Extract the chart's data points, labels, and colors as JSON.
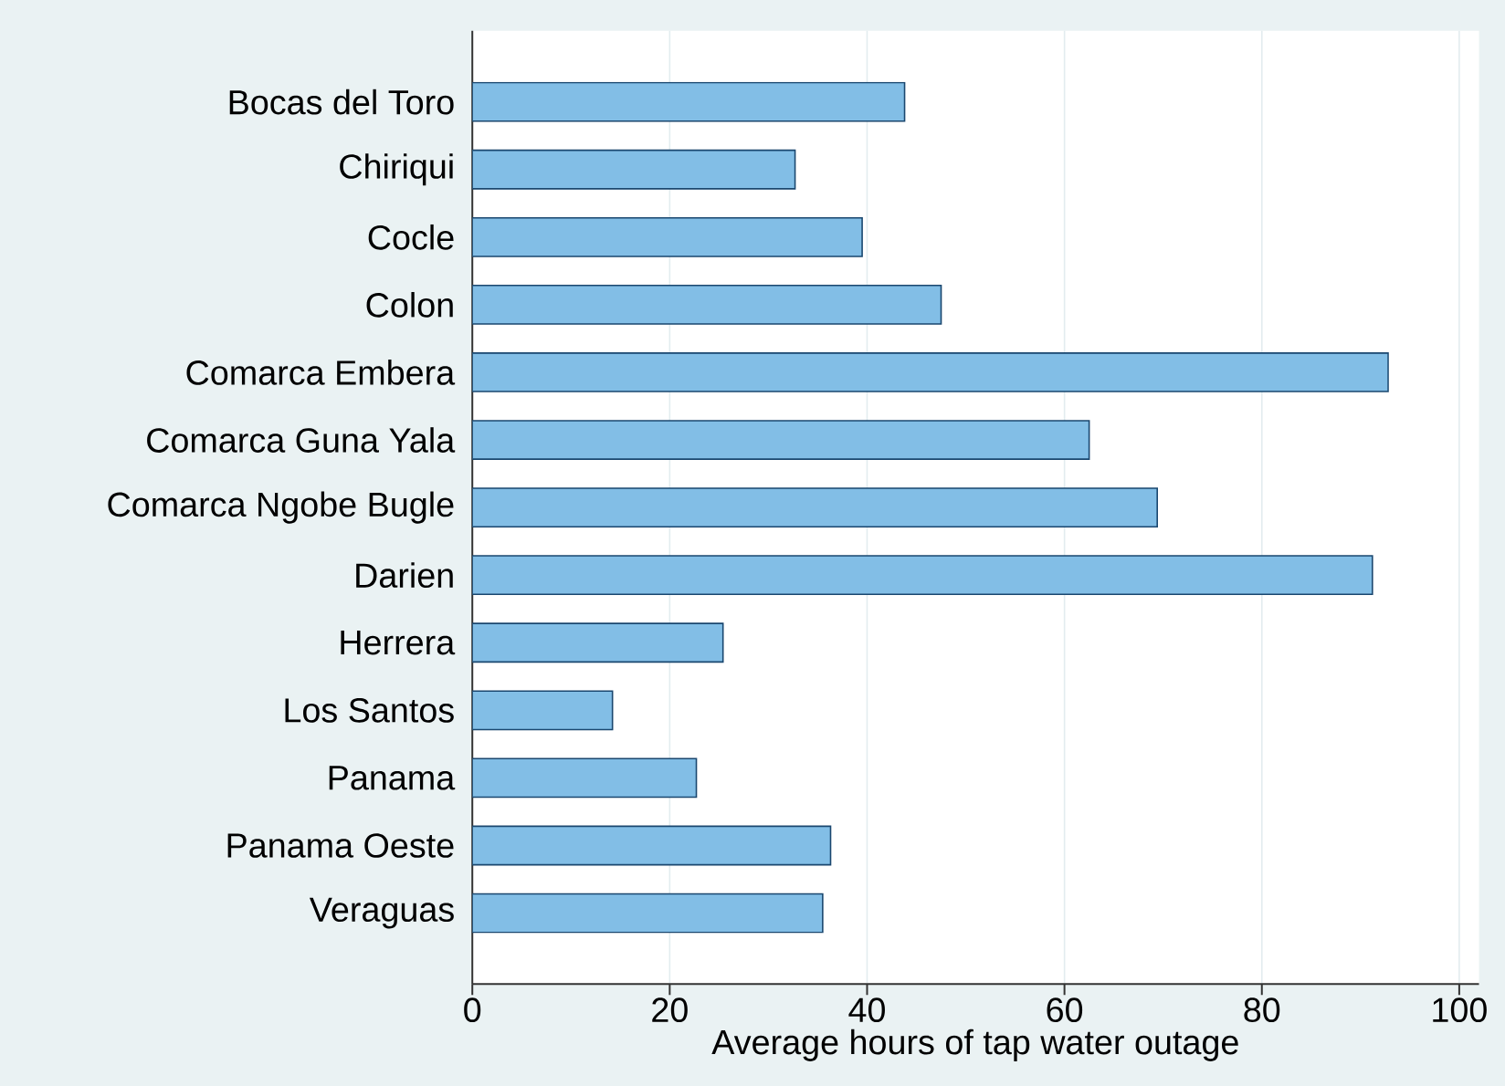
{
  "chart_data": {
    "type": "bar",
    "orientation": "horizontal",
    "categories": [
      "Bocas del Toro",
      "Chiriqui",
      "Cocle",
      "Colon",
      "Comarca Embera",
      "Comarca Guna Yala",
      "Comarca Ngobe Bugle",
      "Darien",
      "Herrera",
      "Los Santos",
      "Panama",
      "Panama Oeste",
      "Veraguas"
    ],
    "values": [
      43.8,
      32.7,
      39.5,
      47.5,
      92.8,
      62.5,
      69.4,
      91.2,
      25.4,
      14.2,
      22.7,
      36.3,
      35.5
    ],
    "color": "#82bee6",
    "xlabel": "Average hours of tap water outage",
    "xlim": [
      0,
      102
    ],
    "xticks": [
      0,
      20,
      40,
      60,
      80,
      100
    ],
    "grid": "x"
  }
}
